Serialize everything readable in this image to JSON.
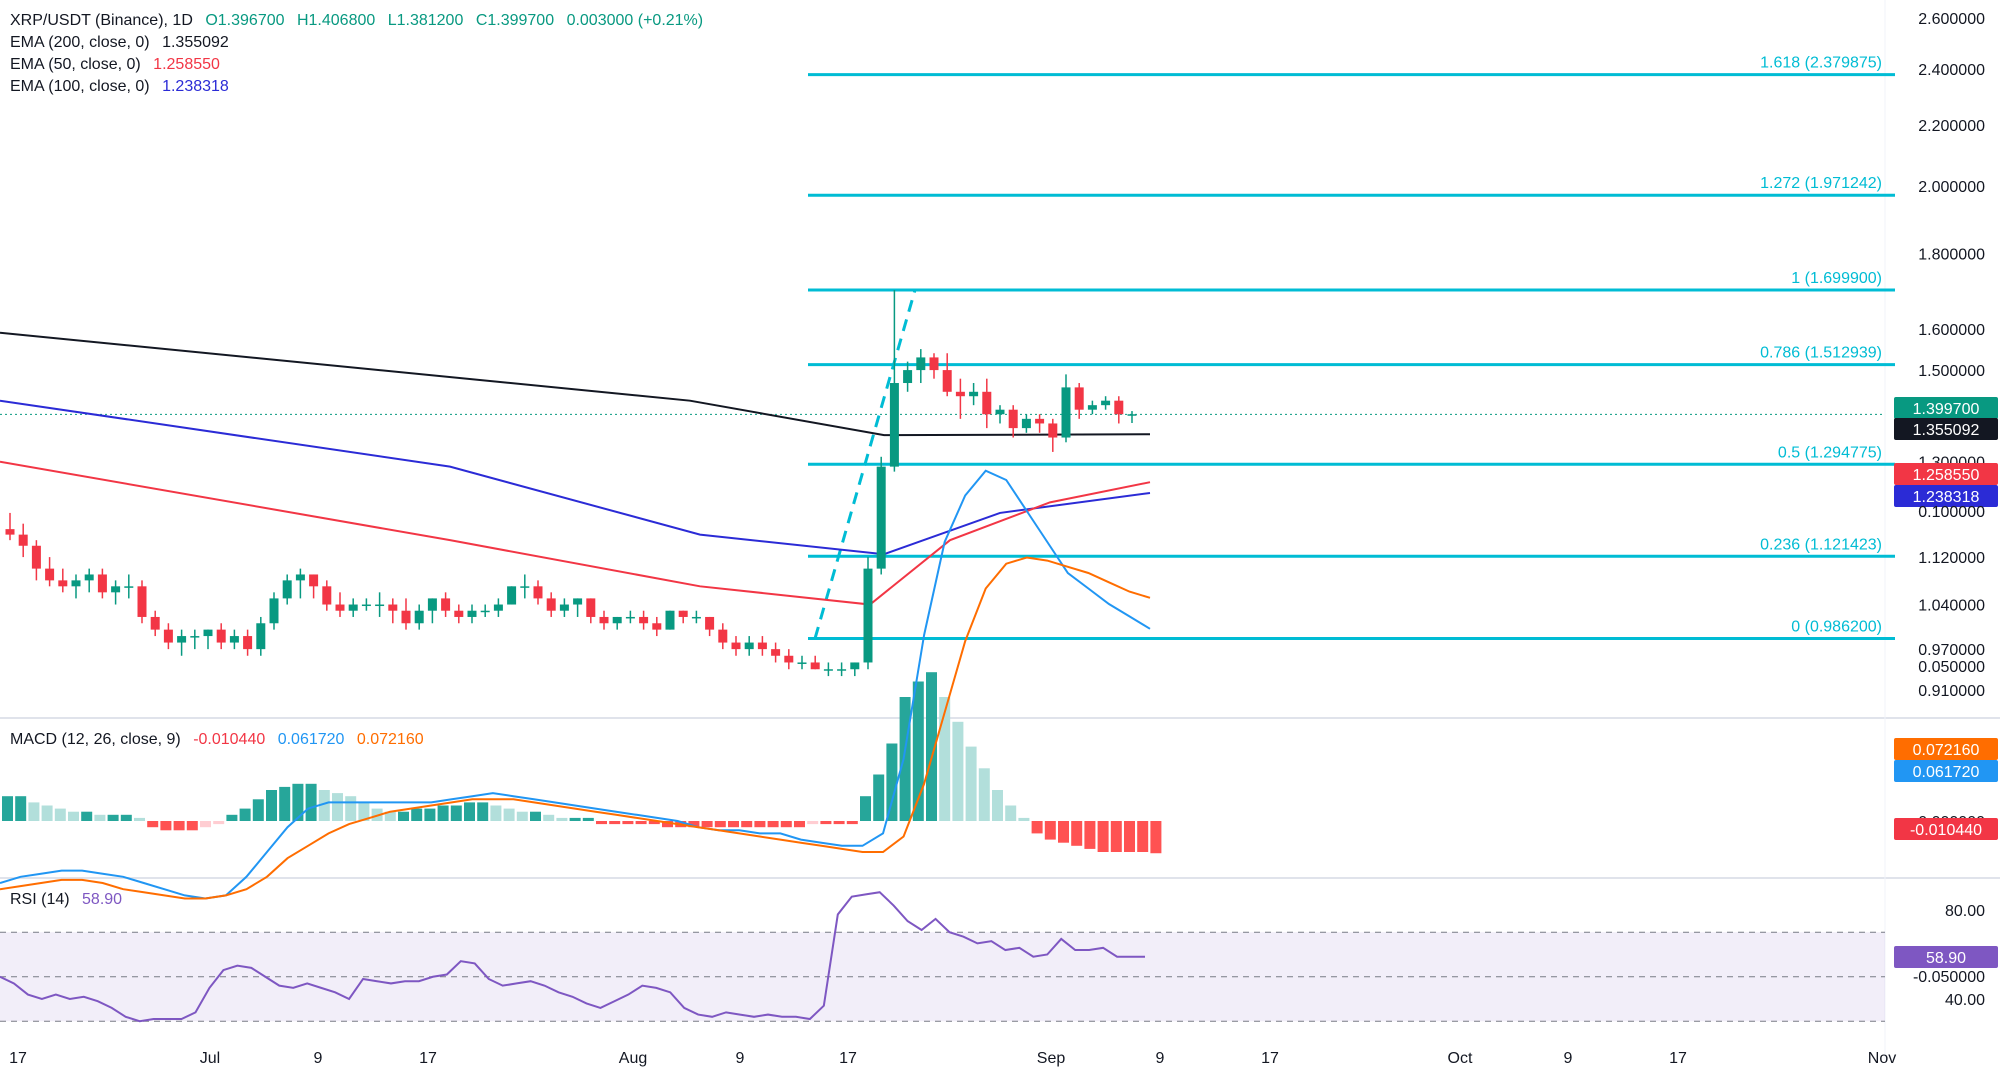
{
  "header": {
    "symbol": "XRP/USDT (Binance), 1D",
    "open": "O1.396700",
    "high": "H1.406800",
    "low": "L1.381200",
    "close": "C1.399700",
    "change": "0.003000 (+0.21%)"
  },
  "indicators": {
    "ema200": {
      "label": "EMA (200, close, 0)",
      "value": "1.355092",
      "color": "#131722"
    },
    "ema50": {
      "label": "EMA (50, close, 0)",
      "value": "1.258550",
      "color": "#f23645"
    },
    "ema100": {
      "label": "EMA (100, close, 0)",
      "value": "1.238318",
      "color": "#2b2bd6"
    }
  },
  "macd_legend": {
    "label": "MACD (12, 26, close, 9)",
    "hist": "-0.010440",
    "macd": "0.061720",
    "signal": "0.072160"
  },
  "rsi_legend": {
    "label": "RSI (14)",
    "value": "58.90"
  },
  "chart_data": {
    "type": "candlestick",
    "price_axis": {
      "ticks": [
        "2.600000",
        "2.400000",
        "2.200000",
        "2.000000",
        "1.800000",
        "1.600000",
        "1.500000",
        "1.300000",
        "1.120000",
        "1.040000",
        "0.970000",
        "0.910000"
      ],
      "scale": "log"
    },
    "time_axis": {
      "ticks": [
        "17",
        "Jul",
        "9",
        "17",
        "Aug",
        "9",
        "17",
        "Sep",
        "9",
        "17",
        "Oct",
        "9",
        "17",
        "Nov"
      ]
    },
    "last_price": "1.399700",
    "badges": {
      "price": {
        "text": "1.399700",
        "color": "#089981"
      },
      "ema200": {
        "text": "1.355092",
        "color": "#131722"
      },
      "ema50": {
        "text": "1.258550",
        "color": "#f23645"
      },
      "ema100": {
        "text": "1.238318",
        "color": "#2b2bd6"
      },
      "macd_signal": {
        "text": "0.072160",
        "color": "#ff6d00"
      },
      "macd_line": {
        "text": "0.061720",
        "color": "#2196f3"
      },
      "macd_hist": {
        "text": "-0.010440",
        "color": "#f23645"
      },
      "rsi": {
        "text": "58.90",
        "color": "#7e57c2"
      }
    },
    "fibonacci": [
      {
        "label": "1.618 (2.379875)",
        "value": 2.379875
      },
      {
        "label": "1.272 (1.971242)",
        "value": 1.971242
      },
      {
        "label": "1 (1.699900)",
        "value": 1.6999
      },
      {
        "label": "0.786 (1.512939)",
        "value": 1.512939
      },
      {
        "label": "0.5 (1.294775)",
        "value": 1.294775
      },
      {
        "label": "0.236 (1.121423)",
        "value": 1.121423
      },
      {
        "label": "0 (0.986200)",
        "value": 0.9862
      }
    ],
    "fib_color": "#00bcd4",
    "candles": [
      [
        1.17,
        1.2,
        1.15,
        1.16
      ],
      [
        1.16,
        1.18,
        1.12,
        1.14
      ],
      [
        1.14,
        1.15,
        1.08,
        1.1
      ],
      [
        1.1,
        1.12,
        1.07,
        1.08
      ],
      [
        1.08,
        1.1,
        1.06,
        1.07
      ],
      [
        1.07,
        1.09,
        1.05,
        1.08
      ],
      [
        1.08,
        1.1,
        1.06,
        1.09
      ],
      [
        1.09,
        1.1,
        1.05,
        1.06
      ],
      [
        1.06,
        1.08,
        1.04,
        1.07
      ],
      [
        1.07,
        1.09,
        1.05,
        1.07
      ],
      [
        1.07,
        1.08,
        1.01,
        1.02
      ],
      [
        1.02,
        1.03,
        0.99,
        1.0
      ],
      [
        1.0,
        1.01,
        0.97,
        0.98
      ],
      [
        0.98,
        1.0,
        0.96,
        0.99
      ],
      [
        0.99,
        1.0,
        0.97,
        0.99
      ],
      [
        0.99,
        1.0,
        0.97,
        1.0
      ],
      [
        1.0,
        1.01,
        0.97,
        0.98
      ],
      [
        0.98,
        1.0,
        0.97,
        0.99
      ],
      [
        0.99,
        1.0,
        0.96,
        0.97
      ],
      [
        0.97,
        1.02,
        0.96,
        1.01
      ],
      [
        1.01,
        1.06,
        1.0,
        1.05
      ],
      [
        1.05,
        1.09,
        1.04,
        1.08
      ],
      [
        1.08,
        1.1,
        1.05,
        1.09
      ],
      [
        1.09,
        1.09,
        1.05,
        1.07
      ],
      [
        1.07,
        1.08,
        1.03,
        1.04
      ],
      [
        1.04,
        1.06,
        1.02,
        1.03
      ],
      [
        1.03,
        1.05,
        1.02,
        1.04
      ],
      [
        1.04,
        1.05,
        1.03,
        1.04
      ],
      [
        1.04,
        1.06,
        1.02,
        1.04
      ],
      [
        1.04,
        1.05,
        1.01,
        1.03
      ],
      [
        1.03,
        1.05,
        1.0,
        1.01
      ],
      [
        1.01,
        1.04,
        1.0,
        1.03
      ],
      [
        1.03,
        1.05,
        1.01,
        1.05
      ],
      [
        1.05,
        1.06,
        1.02,
        1.03
      ],
      [
        1.03,
        1.04,
        1.01,
        1.02
      ],
      [
        1.02,
        1.04,
        1.01,
        1.03
      ],
      [
        1.03,
        1.04,
        1.02,
        1.03
      ],
      [
        1.03,
        1.05,
        1.02,
        1.04
      ],
      [
        1.04,
        1.07,
        1.04,
        1.07
      ],
      [
        1.07,
        1.09,
        1.05,
        1.07
      ],
      [
        1.07,
        1.08,
        1.04,
        1.05
      ],
      [
        1.05,
        1.06,
        1.02,
        1.03
      ],
      [
        1.03,
        1.05,
        1.02,
        1.04
      ],
      [
        1.04,
        1.05,
        1.02,
        1.05
      ],
      [
        1.05,
        1.05,
        1.01,
        1.02
      ],
      [
        1.02,
        1.03,
        1.0,
        1.01
      ],
      [
        1.01,
        1.02,
        1.0,
        1.02
      ],
      [
        1.02,
        1.03,
        1.01,
        1.02
      ],
      [
        1.02,
        1.03,
        1.0,
        1.01
      ],
      [
        1.01,
        1.02,
        0.99,
        1.0
      ],
      [
        1.0,
        1.03,
        1.0,
        1.03
      ],
      [
        1.03,
        1.03,
        1.01,
        1.02
      ],
      [
        1.02,
        1.03,
        1.01,
        1.02
      ],
      [
        1.02,
        1.02,
        0.99,
        1.0
      ],
      [
        1.0,
        1.01,
        0.97,
        0.98
      ],
      [
        0.98,
        0.99,
        0.96,
        0.97
      ],
      [
        0.97,
        0.99,
        0.96,
        0.98
      ],
      [
        0.98,
        0.99,
        0.96,
        0.97
      ],
      [
        0.97,
        0.98,
        0.95,
        0.96
      ],
      [
        0.96,
        0.97,
        0.94,
        0.95
      ],
      [
        0.95,
        0.96,
        0.94,
        0.95
      ],
      [
        0.95,
        0.96,
        0.94,
        0.94
      ],
      [
        0.94,
        0.95,
        0.93,
        0.94
      ],
      [
        0.94,
        0.95,
        0.93,
        0.94
      ],
      [
        0.94,
        0.95,
        0.93,
        0.95
      ],
      [
        0.95,
        1.12,
        0.94,
        1.1
      ],
      [
        1.1,
        1.31,
        1.09,
        1.29
      ],
      [
        1.29,
        1.7,
        1.28,
        1.47
      ],
      [
        1.47,
        1.52,
        1.45,
        1.5
      ],
      [
        1.5,
        1.55,
        1.47,
        1.53
      ],
      [
        1.53,
        1.54,
        1.48,
        1.5
      ],
      [
        1.5,
        1.54,
        1.44,
        1.45
      ],
      [
        1.45,
        1.48,
        1.39,
        1.44
      ],
      [
        1.44,
        1.47,
        1.42,
        1.45
      ],
      [
        1.45,
        1.48,
        1.37,
        1.4
      ],
      [
        1.4,
        1.42,
        1.38,
        1.41
      ],
      [
        1.41,
        1.42,
        1.35,
        1.37
      ],
      [
        1.37,
        1.4,
        1.36,
        1.39
      ],
      [
        1.39,
        1.4,
        1.36,
        1.38
      ],
      [
        1.38,
        1.39,
        1.32,
        1.35
      ],
      [
        1.35,
        1.49,
        1.34,
        1.46
      ],
      [
        1.46,
        1.47,
        1.39,
        1.41
      ],
      [
        1.41,
        1.43,
        1.4,
        1.42
      ],
      [
        1.42,
        1.44,
        1.41,
        1.43
      ],
      [
        1.43,
        1.44,
        1.38,
        1.4
      ],
      [
        1.397,
        1.407,
        1.381,
        1.4
      ]
    ],
    "ema200": [
      [
        0,
        1.59
      ],
      [
        690,
        1.43
      ],
      [
        884,
        1.355
      ],
      [
        1150,
        1.357
      ]
    ],
    "ema100": [
      [
        0,
        1.43
      ],
      [
        450,
        1.29
      ],
      [
        700,
        1.16
      ],
      [
        884,
        1.125
      ],
      [
        1000,
        1.2
      ],
      [
        1150,
        1.238
      ]
    ],
    "ema50": [
      [
        0,
        1.3
      ],
      [
        450,
        1.15
      ],
      [
        700,
        1.07
      ],
      [
        870,
        1.04
      ],
      [
        950,
        1.15
      ],
      [
        1050,
        1.22
      ],
      [
        1150,
        1.259
      ]
    ],
    "macd": {
      "axis_ticks": [
        "0.100000",
        "0.050000",
        "0.000000",
        "-0.050000"
      ],
      "hist": [
        0.008,
        0.008,
        0.006,
        0.005,
        0.004,
        0.003,
        0.003,
        0.002,
        0.002,
        0.002,
        0.001,
        -0.002,
        -0.003,
        -0.003,
        -0.003,
        -0.002,
        -0.001,
        0.002,
        0.004,
        0.007,
        0.01,
        0.011,
        0.012,
        0.012,
        0.01,
        0.009,
        0.008,
        0.006,
        0.004,
        0.003,
        0.003,
        0.004,
        0.004,
        0.005,
        0.005,
        0.006,
        0.006,
        0.005,
        0.004,
        0.003,
        0.003,
        0.002,
        0.001,
        0.001,
        0.001,
        -0.001,
        -0.001,
        -0.001,
        -0.001,
        -0.001,
        -0.002,
        -0.002,
        -0.002,
        -0.002,
        -0.002,
        -0.002,
        -0.002,
        -0.002,
        -0.002,
        -0.002,
        -0.002,
        -0.001,
        -0.001,
        -0.001,
        -0.001,
        0.008,
        0.015,
        0.025,
        0.04,
        0.045,
        0.048,
        0.04,
        0.032,
        0.024,
        0.017,
        0.01,
        0.005,
        0.001,
        -0.004,
        -0.006,
        -0.007,
        -0.008,
        -0.009,
        -0.01,
        -0.01,
        -0.01,
        -0.01,
        -0.0104
      ],
      "macd_line": [
        -0.02,
        -0.018,
        -0.017,
        -0.016,
        -0.016,
        -0.017,
        -0.018,
        -0.02,
        -0.022,
        -0.024,
        -0.025,
        -0.024,
        -0.018,
        -0.01,
        -0.002,
        0.004,
        0.006,
        0.006,
        0.006,
        0.006,
        0.006,
        0.006,
        0.007,
        0.008,
        0.009,
        0.008,
        0.007,
        0.006,
        0.005,
        0.004,
        0.003,
        0.002,
        0.001,
        0.0,
        -0.002,
        -0.003,
        -0.003,
        -0.004,
        -0.004,
        -0.006,
        -0.007,
        -0.008,
        -0.008,
        -0.004,
        0.02,
        0.06,
        0.09,
        0.105,
        0.113,
        0.11,
        0.1,
        0.09,
        0.08,
        0.075,
        0.07,
        0.066,
        0.062
      ],
      "signal_line": [
        -0.022,
        -0.021,
        -0.02,
        -0.019,
        -0.019,
        -0.02,
        -0.022,
        -0.023,
        -0.024,
        -0.025,
        -0.025,
        -0.024,
        -0.022,
        -0.018,
        -0.012,
        -0.008,
        -0.004,
        -0.001,
        0.001,
        0.003,
        0.004,
        0.005,
        0.006,
        0.007,
        0.007,
        0.007,
        0.006,
        0.005,
        0.004,
        0.003,
        0.002,
        0.001,
        0.0,
        -0.001,
        -0.002,
        -0.003,
        -0.004,
        -0.005,
        -0.006,
        -0.007,
        -0.008,
        -0.009,
        -0.01,
        -0.01,
        -0.005,
        0.012,
        0.035,
        0.058,
        0.075,
        0.083,
        0.085,
        0.084,
        0.082,
        0.08,
        0.077,
        0.074,
        0.072
      ]
    },
    "rsi": {
      "axis_ticks": [
        "80.00",
        "40.00"
      ],
      "bands": [
        70,
        50,
        30
      ],
      "values": [
        50,
        47,
        42,
        40,
        42,
        40,
        41,
        39,
        36,
        32,
        30,
        31,
        31,
        31,
        34,
        45,
        53,
        55,
        54,
        50,
        46,
        45,
        47,
        45,
        43,
        40,
        49,
        48,
        47,
        48,
        48,
        50,
        51,
        57,
        56,
        49,
        46,
        47,
        48,
        46,
        43,
        41,
        38,
        36,
        39,
        42,
        46,
        45,
        43,
        36,
        33,
        32,
        34,
        33,
        32,
        33,
        32,
        32,
        31,
        37,
        78,
        86,
        87,
        88,
        82,
        75,
        71,
        76,
        70,
        68,
        65,
        66,
        62,
        63,
        59,
        60,
        67,
        62,
        62,
        63,
        59,
        59,
        59
      ]
    }
  }
}
